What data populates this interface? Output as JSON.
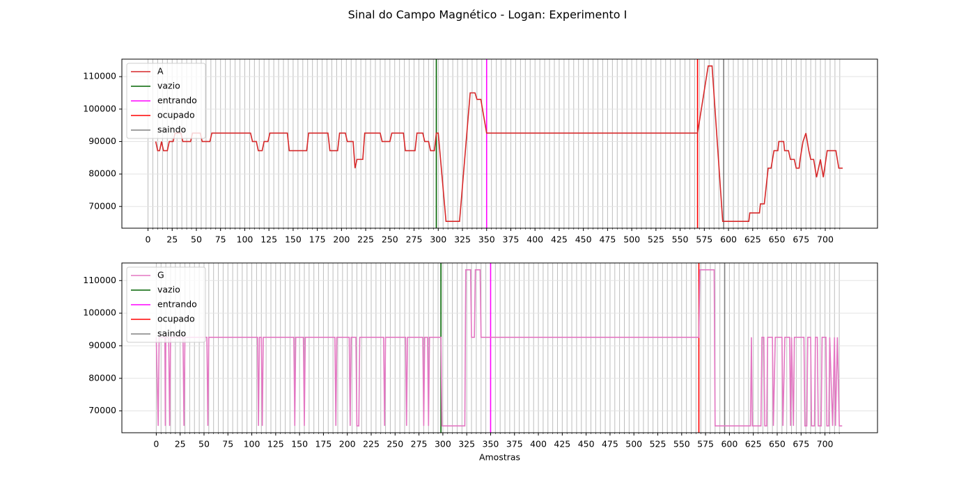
{
  "title": "Sinal do Campo Magnético - Logan: Experimento I",
  "chart_data": [
    {
      "type": "line",
      "grid": true,
      "legend": "upper left",
      "xlim": [
        -27,
        754
      ],
      "ylim": [
        63300,
        115400
      ],
      "xticks": [
        0,
        25,
        50,
        75,
        100,
        125,
        150,
        175,
        200,
        225,
        250,
        275,
        300,
        325,
        350,
        375,
        400,
        425,
        450,
        475,
        500,
        525,
        550,
        575,
        600,
        625,
        650,
        675,
        700
      ],
      "yticks": [
        70000,
        80000,
        90000,
        100000,
        110000
      ],
      "xgrid": [
        0,
        5,
        10,
        15,
        20,
        25,
        30,
        35,
        40,
        45,
        50,
        55,
        60,
        65,
        70,
        75,
        80,
        85,
        90,
        95,
        100,
        105,
        110,
        115,
        120,
        125,
        130,
        135,
        140,
        145,
        150,
        155,
        160,
        165,
        170,
        175,
        180,
        185,
        190,
        195,
        200,
        205,
        210,
        215,
        220,
        225,
        230,
        235,
        240,
        245,
        250,
        255,
        260,
        265,
        270,
        275,
        280,
        285,
        290,
        295,
        300,
        305,
        310,
        315,
        320,
        325,
        330,
        335,
        340,
        345,
        350,
        355,
        360,
        365,
        370,
        375,
        380,
        385,
        390,
        395,
        400,
        405,
        410,
        415,
        420,
        425,
        430,
        435,
        440,
        445,
        450,
        455,
        460,
        465,
        470,
        475,
        480,
        485,
        490,
        495,
        500,
        505,
        510,
        515,
        520,
        525,
        530,
        535,
        540,
        545,
        550,
        555,
        560,
        565,
        570,
        575,
        580,
        585,
        590,
        595,
        600,
        605,
        610,
        615,
        620,
        625,
        630,
        635,
        640,
        645,
        650,
        655,
        660,
        665,
        670,
        675,
        680,
        685,
        690,
        695,
        700,
        705,
        710,
        715
      ],
      "x": [
        8,
        10,
        12,
        14,
        16,
        20,
        22,
        26,
        28,
        34,
        36,
        44,
        46,
        54,
        56,
        64,
        66,
        106,
        108,
        112,
        114,
        118,
        120,
        124,
        126,
        144,
        146,
        164,
        166,
        186,
        188,
        196,
        198,
        204,
        206,
        212,
        214,
        216,
        222,
        224,
        240,
        242,
        250,
        252,
        264,
        266,
        276,
        278,
        284,
        286,
        290,
        292,
        296,
        298,
        300,
        308,
        322,
        333,
        338,
        340,
        344,
        350,
        568,
        579,
        583,
        594,
        621,
        622,
        632,
        633,
        637,
        641,
        644,
        647,
        651,
        652,
        657,
        658,
        662,
        664,
        668,
        670,
        673,
        674,
        677,
        680,
        683,
        685,
        688,
        691,
        695,
        698,
        702,
        711,
        714,
        718
      ],
      "series": [
        {
          "name": "A",
          "color": "#d62728",
          "values": [
            90000,
            87200,
            87200,
            90000,
            87200,
            87200,
            90000,
            90000,
            92600,
            92600,
            90000,
            90000,
            92600,
            92600,
            90000,
            90000,
            92600,
            92600,
            90000,
            90000,
            87200,
            87200,
            90000,
            90000,
            92600,
            92600,
            87200,
            87200,
            92600,
            92600,
            87200,
            87200,
            92600,
            92600,
            90000,
            90000,
            81800,
            84500,
            84500,
            92600,
            92600,
            90000,
            90000,
            92600,
            92600,
            87200,
            87200,
            92600,
            92600,
            90000,
            90000,
            87200,
            87200,
            92600,
            92600,
            65400,
            65400,
            105000,
            105000,
            103000,
            103000,
            92600,
            92600,
            113300,
            113300,
            65400,
            65400,
            68000,
            68000,
            70800,
            70800,
            81800,
            81800,
            87200,
            87200,
            90000,
            90000,
            87200,
            87200,
            84500,
            84500,
            81800,
            81800,
            84500,
            90000,
            92600,
            87200,
            84500,
            84500,
            79000,
            84500,
            79000,
            87200,
            87200,
            81800,
            81800
          ]
        }
      ],
      "vlines": [
        {
          "name": "vazio",
          "color": "#006400",
          "x": 298
        },
        {
          "name": "entrando",
          "color": "#ff00ff",
          "x": 350
        },
        {
          "name": "ocupado",
          "color": "#ff0000",
          "x": 568
        },
        {
          "name": "saindo",
          "color": "#808080",
          "x": 595
        }
      ]
    },
    {
      "type": "line",
      "grid": true,
      "legend": "upper left",
      "xlabel": "Amostras",
      "xlim": [
        -36,
        755
      ],
      "ylim": [
        63300,
        115400
      ],
      "xticks": [
        0,
        25,
        50,
        75,
        100,
        125,
        150,
        175,
        200,
        225,
        250,
        275,
        300,
        325,
        350,
        375,
        400,
        425,
        450,
        475,
        500,
        525,
        550,
        575,
        600,
        625,
        650,
        675,
        700
      ],
      "yticks": [
        70000,
        80000,
        90000,
        100000,
        110000
      ],
      "xgrid": [
        0,
        5,
        10,
        15,
        20,
        25,
        30,
        35,
        40,
        45,
        50,
        55,
        60,
        65,
        70,
        75,
        80,
        85,
        90,
        95,
        100,
        105,
        110,
        115,
        120,
        125,
        130,
        135,
        140,
        145,
        150,
        155,
        160,
        165,
        170,
        175,
        180,
        185,
        190,
        195,
        200,
        205,
        210,
        215,
        220,
        225,
        230,
        235,
        240,
        245,
        250,
        255,
        260,
        265,
        270,
        275,
        280,
        285,
        290,
        295,
        300,
        305,
        310,
        315,
        320,
        325,
        330,
        335,
        340,
        345,
        350,
        355,
        360,
        365,
        370,
        375,
        380,
        385,
        390,
        395,
        400,
        405,
        410,
        415,
        420,
        425,
        430,
        435,
        440,
        445,
        450,
        455,
        460,
        465,
        470,
        475,
        480,
        485,
        490,
        495,
        500,
        505,
        510,
        515,
        520,
        525,
        530,
        535,
        540,
        545,
        550,
        555,
        560,
        565,
        570,
        575,
        580,
        585,
        590,
        595,
        600,
        605,
        610,
        615,
        620,
        625,
        630,
        635,
        640,
        645,
        650,
        655,
        660,
        665,
        670,
        675,
        680,
        685,
        690,
        695,
        700,
        705,
        710,
        715
      ],
      "x": [
        0,
        2,
        3,
        9,
        9.5,
        10,
        13,
        14,
        15,
        28,
        29,
        30,
        53,
        54,
        55,
        106,
        107,
        108,
        110,
        111,
        112,
        144,
        145,
        146,
        154,
        155,
        156,
        187,
        188,
        189,
        202,
        203,
        204,
        209,
        210,
        212,
        213,
        238,
        239,
        240,
        261,
        262,
        263,
        279,
        280,
        281,
        284,
        285,
        286,
        298,
        299,
        323,
        324,
        329,
        330,
        333,
        334,
        339,
        340,
        568,
        569,
        584,
        585,
        622,
        623,
        624,
        633,
        634,
        636,
        637,
        639,
        640,
        645,
        646,
        648,
        655,
        656,
        658,
        663,
        664,
        665,
        667,
        668,
        678,
        679,
        681,
        682,
        685,
        686,
        689,
        690,
        692,
        693,
        696,
        697,
        701,
        702,
        704,
        705,
        708,
        710,
        711,
        713,
        715,
        718
      ],
      "series": [
        {
          "name": "G",
          "color": "#e377c2",
          "values": [
            92600,
            65400,
            92600,
            92600,
            65400,
            92600,
            92600,
            65400,
            92600,
            92600,
            65400,
            92600,
            92600,
            65400,
            92600,
            92600,
            65400,
            92600,
            92600,
            65400,
            92600,
            92600,
            65400,
            92600,
            92600,
            65400,
            92600,
            92600,
            65400,
            92600,
            92600,
            65400,
            92600,
            92600,
            65400,
            65400,
            92600,
            92600,
            65400,
            92600,
            92600,
            65400,
            92600,
            92600,
            65400,
            92600,
            92600,
            65400,
            92600,
            92600,
            65400,
            65400,
            113300,
            113300,
            92600,
            92600,
            113300,
            113300,
            92600,
            92600,
            113300,
            113300,
            65400,
            65400,
            92600,
            65400,
            65400,
            92600,
            92600,
            65400,
            65400,
            92600,
            92600,
            65400,
            92600,
            92600,
            65400,
            92600,
            92600,
            65400,
            92600,
            65400,
            92600,
            92600,
            65400,
            65400,
            92600,
            92600,
            65400,
            65400,
            92600,
            92600,
            65400,
            65400,
            92600,
            92600,
            65400,
            65400,
            92600,
            65400,
            92600,
            65400,
            92600,
            65400,
            65400
          ]
        }
      ],
      "vlines": [
        {
          "name": "vazio",
          "color": "#006400",
          "x": 298
        },
        {
          "name": "entrando",
          "color": "#ff00ff",
          "x": 350
        },
        {
          "name": "ocupado",
          "color": "#ff0000",
          "x": 568
        },
        {
          "name": "saindo",
          "color": "#808080",
          "x": 595
        }
      ]
    }
  ]
}
